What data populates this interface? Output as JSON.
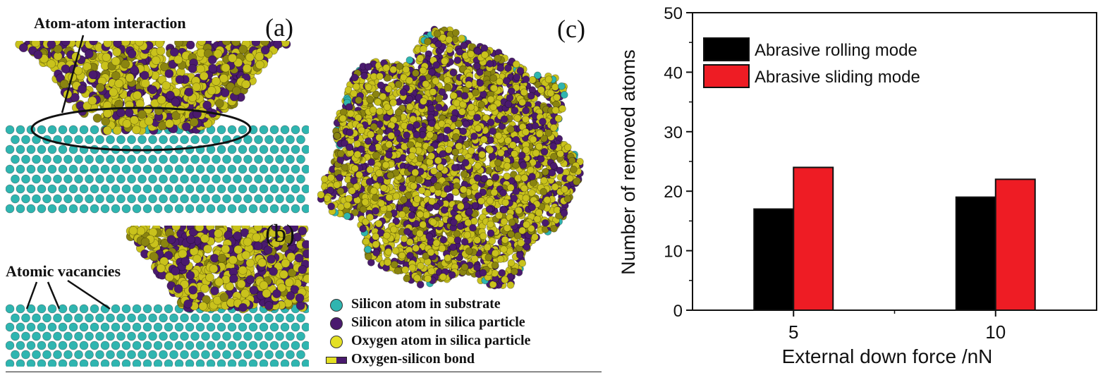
{
  "figure": {
    "panel_labels": {
      "a": "(a)",
      "b": "(b)",
      "c": "(c)"
    },
    "annotations": {
      "atom_atom": "Atom-atom interaction",
      "vacancies": "Atomic vacancies"
    },
    "molecule_legend": [
      {
        "label": "Silicon atom in substrate",
        "color": "#2fb5b0"
      },
      {
        "label": "Silicon atom in silica particle",
        "color": "#4a1a6e"
      },
      {
        "label": "Oxygen atom in silica particle",
        "color": "#e4e024"
      },
      {
        "label": "Oxygen-silicon bond",
        "colors": [
          "#e4e024",
          "#4a1a6e"
        ]
      }
    ],
    "colors": {
      "substrate_si": "#2fb5b0",
      "particle_si": "#4a1a6e",
      "particle_o": "#c9c21c",
      "particle_o_dark": "#8a8410"
    }
  },
  "chart_data": {
    "type": "bar",
    "categories": [
      "5",
      "10"
    ],
    "series": [
      {
        "name": "Abrasive rolling mode",
        "values": [
          17,
          19
        ],
        "color": "#000000"
      },
      {
        "name": "Abrasive sliding mode",
        "values": [
          24,
          22
        ],
        "color": "#ee1c24"
      }
    ],
    "xlabel": "External down force /nN",
    "ylabel": "Number of removed atoms",
    "ylim": [
      0,
      50
    ],
    "yticks": [
      0,
      10,
      20,
      30,
      40,
      50
    ],
    "legend_position": "top-left",
    "grid": false
  }
}
